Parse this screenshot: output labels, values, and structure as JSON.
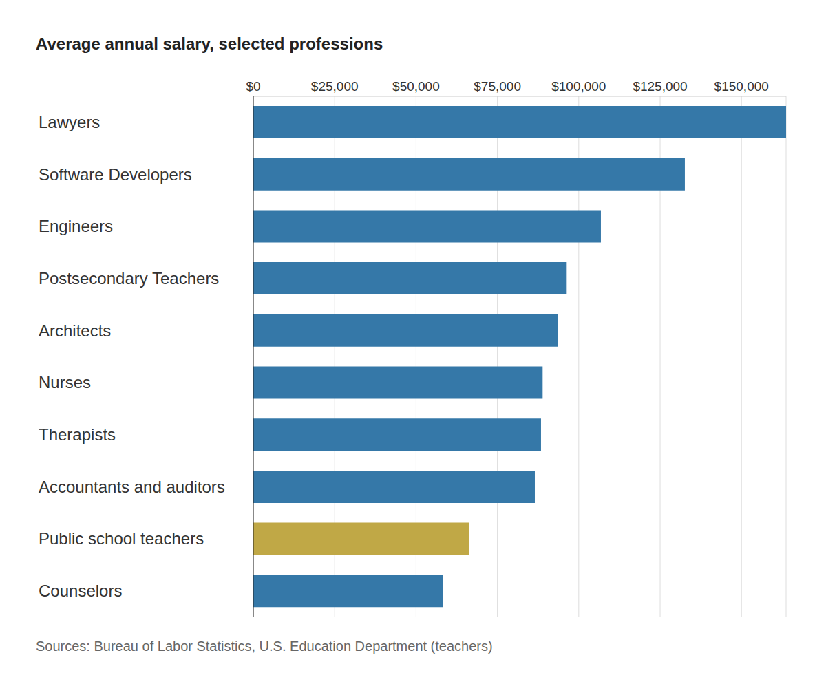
{
  "chart_data": {
    "type": "bar",
    "title": "Average annual salary, selected professions",
    "source": "Sources: Bureau of Labor Statistics, U.S. Education Department (teachers)",
    "orientation": "horizontal",
    "grid": true,
    "categories": [
      "Lawyers",
      "Software Developers",
      "Engineers",
      "Postsecondary Teachers",
      "Architects",
      "Nurses",
      "Therapists",
      "Accountants and auditors",
      "Public school teachers",
      "Counselors"
    ],
    "values": [
      163700,
      132600,
      106800,
      96300,
      93500,
      88900,
      88400,
      86500,
      66400,
      58200
    ],
    "colors": [
      "#3578a8",
      "#3578a8",
      "#3578a8",
      "#3578a8",
      "#3578a8",
      "#3578a8",
      "#3578a8",
      "#3578a8",
      "#c0a846",
      "#3578a8"
    ],
    "xlim": [
      0,
      163700
    ],
    "xticks": [
      {
        "value": 0,
        "label": "$0"
      },
      {
        "value": 25000,
        "label": "$25,000"
      },
      {
        "value": 50000,
        "label": "$50,000"
      },
      {
        "value": 75000,
        "label": "$75,000"
      },
      {
        "value": 100000,
        "label": "$100,000"
      },
      {
        "value": 125000,
        "label": "$125,000"
      },
      {
        "value": 150000,
        "label": "$150,000"
      }
    ]
  }
}
